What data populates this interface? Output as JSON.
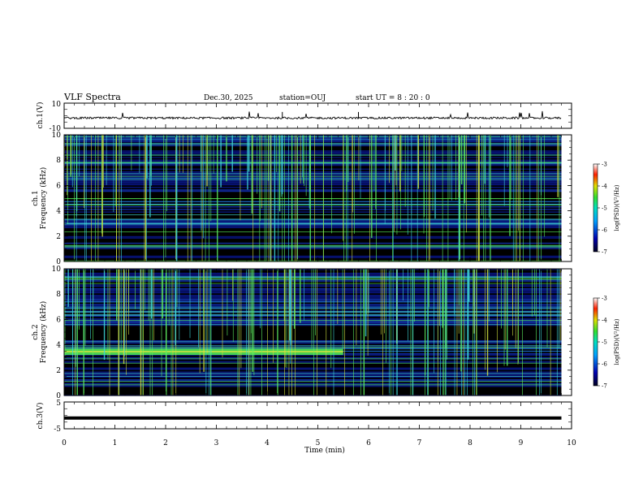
{
  "header": {
    "title": "VLF Spectra",
    "date": "Dec.30, 2025",
    "station": "station=OUJ",
    "start_time": "start  UT =   8  : 20 : 0"
  },
  "chart_data": [
    {
      "type": "line",
      "name": "ch1-waveform",
      "ylabel": "ch.1(V)",
      "ylim": [
        -10,
        10
      ],
      "yticks": [
        "10",
        "-10"
      ],
      "xlim": [
        0,
        10
      ],
      "x": [
        0,
        1,
        2,
        3,
        4,
        4.3,
        5,
        5.8,
        6,
        7,
        8,
        9,
        9.8
      ],
      "y": [
        -2,
        -2,
        -1.8,
        -1.9,
        -1.5,
        1.5,
        -1.7,
        1.2,
        -1.8,
        -1.9,
        -1.8,
        -1.9,
        -1.6
      ]
    },
    {
      "type": "heatmap",
      "name": "ch1-spectrogram",
      "ylabel": "ch.1\nFrequency (kHz)",
      "ylabel_line1": "ch.1",
      "ylabel_line2": "Frequency (kHz)",
      "ylim": [
        0,
        10
      ],
      "yticks": [
        "0",
        "2",
        "4",
        "6",
        "8",
        "10"
      ],
      "xlim": [
        0,
        10
      ],
      "data_extent_min": 9.8,
      "colorbar": {
        "label": "log(PSD)(V²/Hz)",
        "range": [
          -7,
          -3
        ],
        "ticks": [
          "-3",
          "-4",
          "-5",
          "-6",
          "-7"
        ]
      }
    },
    {
      "type": "heatmap",
      "name": "ch2-spectrogram",
      "ylabel": "ch.2\nFrequency (kHz)",
      "ylabel_line1": "ch.2",
      "ylabel_line2": "Frequency (kHz)",
      "ylim": [
        0,
        10
      ],
      "yticks": [
        "0",
        "2",
        "4",
        "6",
        "8",
        "10"
      ],
      "xlim": [
        0,
        10
      ],
      "data_extent_min": 9.8,
      "band_khz": [
        3.2,
        3.7
      ],
      "band_end_min": 5.5,
      "colorbar": {
        "label": "log(PSD)(V²/Hz)",
        "range": [
          -7,
          -3
        ],
        "ticks": [
          "-3",
          "-4",
          "-5",
          "-6",
          "-7"
        ]
      }
    },
    {
      "type": "line",
      "name": "ch3-waveform",
      "ylabel": "ch.3(V)",
      "ylim": [
        -5,
        5
      ],
      "yticks": [
        "5",
        "-5"
      ],
      "xlim": [
        0,
        10
      ],
      "x": [
        0,
        9.8
      ],
      "y": [
        -1,
        -1
      ]
    }
  ],
  "xaxis": {
    "label": "Time (min)",
    "ticks": [
      "0",
      "1",
      "2",
      "3",
      "4",
      "5",
      "6",
      "7",
      "8",
      "9",
      "10"
    ]
  },
  "colors": {
    "background": "#000000",
    "noise": "#1428c8",
    "band": "#50e650"
  }
}
